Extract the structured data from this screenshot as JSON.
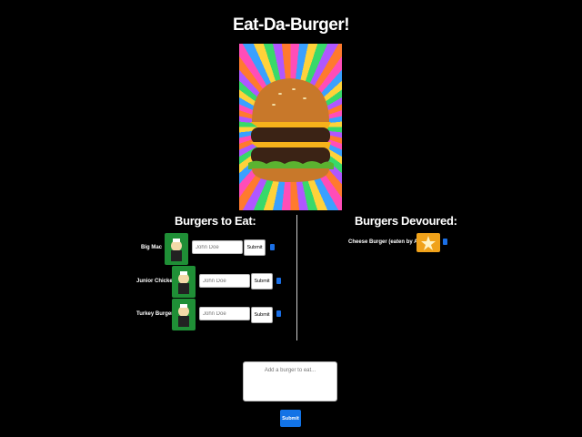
{
  "header": {
    "title": "Eat-Da-Burger!"
  },
  "hero_image": {
    "icon": "burger-hero-icon"
  },
  "to_eat": {
    "title": "Burgers to Eat:",
    "items": [
      {
        "name": "Big Mac",
        "input_placeholder": "John Doe",
        "submit_label": "Submit"
      },
      {
        "name": "Junior Chicken",
        "input_placeholder": "John Doe",
        "submit_label": "Submit"
      },
      {
        "name": "Turkey Burger",
        "input_placeholder": "John Doe",
        "submit_label": "Submit"
      }
    ]
  },
  "devoured": {
    "title": "Burgers Devoured:",
    "items": [
      {
        "label": "Cheese Burger (eaten by Adam)"
      }
    ]
  },
  "add_form": {
    "placeholder": "Add a burger to eat...",
    "submit_label": "Submit"
  },
  "colors": {
    "background": "#000000",
    "accent": "#1273e6",
    "avatar_green": "#1f8f36",
    "avatar_orange": "#f0a21a"
  }
}
